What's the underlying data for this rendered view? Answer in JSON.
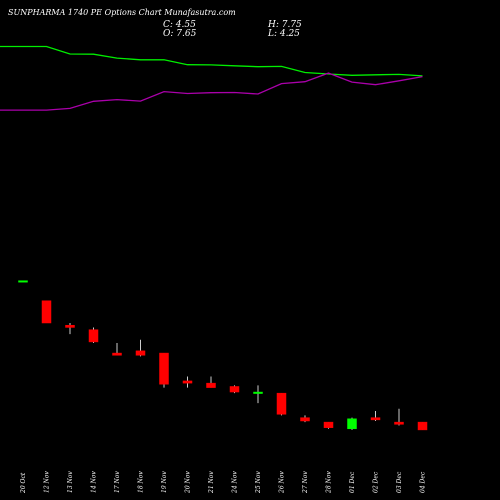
{
  "header": {
    "title": "SUNPHARMA 1740  PE Options  Chart Munafasutra.com",
    "close_label": "C: 4.55",
    "open_label": "O: 7.65",
    "high_label": "H: 7.75",
    "low_label": "L: 4.25"
  },
  "colors": {
    "background": "#000000",
    "up": "#00ff00",
    "down": "#ff0000",
    "line_green": "#00ee00",
    "line_magenta": "#aa00aa",
    "wick": "#ffffff",
    "label": "#ffffff"
  },
  "chart_data": {
    "type": "candlestick",
    "categories": [
      "20 Oct",
      "12 Nov",
      "13 Nov",
      "14 Nov",
      "17 Nov",
      "18 Nov",
      "19 Nov",
      "20 Nov",
      "21 Nov",
      "24 Nov",
      "25 Nov",
      "26 Nov",
      "27 Nov",
      "28 Nov",
      "01 Dec",
      "02 Dec",
      "03 Dec",
      "04 Dec"
    ],
    "candles": [
      {
        "o": 12.5,
        "h": 12.5,
        "l": 12.5,
        "c": 12.5
      },
      {
        "o": 11.6,
        "h": 11.6,
        "l": 10.6,
        "c": 10.6
      },
      {
        "o": 10.5,
        "h": 10.6,
        "l": 10.1,
        "c": 10.4
      },
      {
        "o": 10.3,
        "h": 10.4,
        "l": 9.7,
        "c": 9.75
      },
      {
        "o": 9.25,
        "h": 9.7,
        "l": 9.15,
        "c": 9.15
      },
      {
        "o": 9.35,
        "h": 9.85,
        "l": 9.1,
        "c": 9.15
      },
      {
        "o": 9.25,
        "h": 9.25,
        "l": 7.7,
        "c": 7.85
      },
      {
        "o": 8.0,
        "h": 8.2,
        "l": 7.7,
        "c": 7.9
      },
      {
        "o": 7.9,
        "h": 8.2,
        "l": 7.7,
        "c": 7.7
      },
      {
        "o": 7.75,
        "h": 7.8,
        "l": 7.45,
        "c": 7.5
      },
      {
        "o": 7.45,
        "h": 7.8,
        "l": 7.0,
        "c": 7.5
      },
      {
        "o": 7.45,
        "h": 7.45,
        "l": 6.45,
        "c": 6.5
      },
      {
        "o": 6.35,
        "h": 6.45,
        "l": 6.15,
        "c": 6.2
      },
      {
        "o": 6.15,
        "h": 6.15,
        "l": 5.85,
        "c": 5.9
      },
      {
        "o": 5.85,
        "h": 6.35,
        "l": 5.8,
        "c": 6.3
      },
      {
        "o": 6.35,
        "h": 6.65,
        "l": 6.2,
        "c": 6.25
      },
      {
        "o": 6.15,
        "h": 6.75,
        "l": 6.0,
        "c": 6.05
      },
      {
        "o": 6.15,
        "h": 6.15,
        "l": 5.8,
        "c": 5.8
      }
    ],
    "series": [
      {
        "values": [
          97.0,
          97.0,
          93.5,
          93.4,
          91.6,
          90.8,
          90.8,
          88.5,
          88.4,
          88.0,
          87.6,
          87.7,
          84.9,
          84.2,
          83.6,
          83.8,
          84.0,
          83.3
        ]
      },
      {
        "values": [
          67.4,
          67.4,
          68.2,
          71.5,
          72.3,
          71.6,
          76.0,
          75.1,
          75.5,
          75.6,
          74.9,
          79.7,
          80.6,
          84.6,
          80.4,
          79.2,
          81.0,
          83.0
        ]
      }
    ],
    "ylim": [
      4,
      15
    ]
  }
}
